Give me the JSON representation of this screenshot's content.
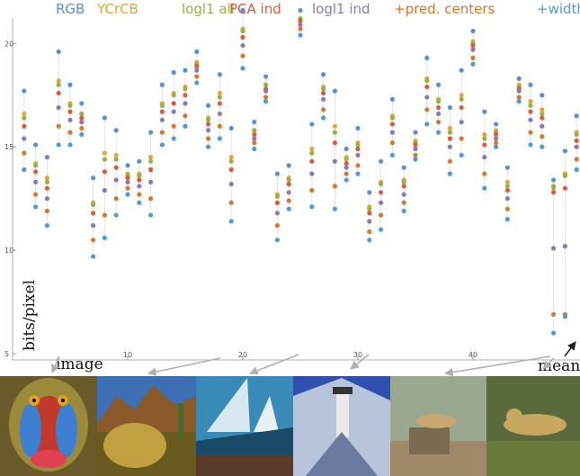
{
  "chart_data": {
    "type": "scatter",
    "x": [
      1,
      2,
      3,
      4,
      5,
      6,
      7,
      8,
      9,
      10,
      11,
      12,
      13,
      14,
      15,
      16,
      17,
      18,
      19,
      20,
      21,
      22,
      23,
      24,
      25,
      26,
      27,
      28,
      29,
      30,
      31,
      32,
      33,
      34,
      35,
      36,
      37,
      38,
      39,
      40,
      41,
      42,
      43,
      44,
      45,
      46,
      47,
      48,
      49
    ],
    "xlim": [
      0,
      49.3
    ],
    "xticks": [
      10,
      20,
      30,
      40
    ],
    "ylim": [
      4.7,
      22.1
    ],
    "yticks": [
      5,
      10,
      15,
      20
    ],
    "x_label": "image",
    "y_label": "bits/pixel",
    "annotation": "mean",
    "series": [
      {
        "name": "RGB",
        "color": "#5b8fd6",
        "values": [
          17.7,
          15.1,
          14.5,
          19.6,
          18.0,
          17.1,
          13.5,
          16.4,
          15.8,
          14.1,
          14.3,
          15.7,
          18.0,
          18.6,
          18.7,
          19.6,
          17.0,
          18.5,
          15.9,
          21.6,
          16.2,
          18.4,
          13.7,
          14.1,
          21.6,
          16.1,
          18.5,
          17.7,
          14.9,
          15.9,
          12.8,
          14.3,
          17.3,
          14.0,
          15.7,
          19.3,
          18.0,
          16.9,
          18.7,
          20.6,
          16.7,
          16.1,
          14.0,
          18.3,
          18.0,
          17.5,
          13.4,
          14.8,
          16.5
        ]
      },
      {
        "name": "YCrCB",
        "color": "#e8a33a",
        "values": [
          16.6,
          14.2,
          13.5,
          18.2,
          17.1,
          16.6,
          12.3,
          14.7,
          14.6,
          13.7,
          13.7,
          14.5,
          17.1,
          17.6,
          17.9,
          19.1,
          16.4,
          17.6,
          14.5,
          20.7,
          15.8,
          18.0,
          12.7,
          13.5,
          21.2,
          14.9,
          17.9,
          16.0,
          14.5,
          15.2,
          12.1,
          13.3,
          16.5,
          13.4,
          15.3,
          18.3,
          17.3,
          15.9,
          17.5,
          20.1,
          15.6,
          15.8,
          13.3,
          18.0,
          17.2,
          16.8,
          13.0,
          13.7,
          15.7
        ]
      },
      {
        "name": "logl1 all",
        "color": "#8fb548",
        "values": [
          16.4,
          14.1,
          13.3,
          18.0,
          17.0,
          16.6,
          12.2,
          14.4,
          14.4,
          13.6,
          13.6,
          14.3,
          17.0,
          17.5,
          17.8,
          19.0,
          16.3,
          17.4,
          14.3,
          20.6,
          15.8,
          18.0,
          12.6,
          13.4,
          21.2,
          14.7,
          17.8,
          15.7,
          14.4,
          15.1,
          12.0,
          13.2,
          16.4,
          13.3,
          15.2,
          18.2,
          17.2,
          15.7,
          17.3,
          20.0,
          15.4,
          15.7,
          13.1,
          17.9,
          17.0,
          16.6,
          13.1,
          13.6,
          15.6
        ]
      },
      {
        "name": "PCA ind",
        "color": "#e05a3a",
        "values": [
          16.0,
          13.8,
          13.0,
          17.6,
          16.7,
          16.4,
          11.8,
          13.8,
          14.0,
          13.5,
          13.4,
          13.9,
          16.7,
          17.1,
          17.5,
          18.9,
          16.1,
          17.1,
          13.9,
          20.3,
          15.6,
          17.8,
          12.3,
          13.2,
          21.1,
          14.3,
          17.6,
          15.2,
          14.2,
          14.9,
          11.8,
          12.8,
          16.1,
          13.1,
          15.1,
          17.9,
          16.9,
          15.4,
          16.9,
          19.9,
          15.1,
          15.6,
          12.9,
          17.8,
          16.7,
          16.4,
          12.8,
          13.0,
          15.3
        ]
      },
      {
        "name": "logl1 ind",
        "color": "#8a78b8",
        "values": [
          15.4,
          13.3,
          12.5,
          16.9,
          16.3,
          16.2,
          11.2,
          12.9,
          13.4,
          13.3,
          13.1,
          13.3,
          16.3,
          16.7,
          17.1,
          18.7,
          15.8,
          16.6,
          13.2,
          19.9,
          15.4,
          17.7,
          11.8,
          12.8,
          20.9,
          13.7,
          17.3,
          14.3,
          14.0,
          14.6,
          11.4,
          12.3,
          15.7,
          12.7,
          14.9,
          17.4,
          16.6,
          15.0,
          16.2,
          19.7,
          14.5,
          15.4,
          12.5,
          17.7,
          16.3,
          16.0,
          10.1,
          10.2,
          15.0
        ]
      },
      {
        "name": "+pred. centers",
        "color": "#d8782e",
        "values": [
          14.7,
          12.7,
          11.9,
          16.0,
          15.7,
          15.9,
          10.5,
          11.7,
          12.5,
          13.0,
          12.7,
          12.5,
          15.7,
          16.0,
          16.5,
          18.4,
          15.4,
          16.0,
          12.3,
          19.4,
          15.2,
          17.4,
          11.2,
          12.4,
          20.7,
          12.9,
          16.8,
          13.1,
          13.7,
          14.1,
          10.9,
          11.7,
          15.2,
          12.3,
          14.6,
          16.8,
          16.2,
          14.3,
          15.4,
          19.3,
          13.7,
          15.2,
          12.0,
          17.4,
          15.7,
          15.5,
          6.9,
          6.9,
          14.4
        ]
      },
      {
        "name": "+widths",
        "color": "#4f9bd8",
        "values": [
          13.9,
          12.1,
          11.2,
          15.1,
          15.1,
          15.6,
          9.7,
          10.6,
          11.7,
          12.7,
          12.3,
          11.7,
          15.1,
          15.4,
          16.0,
          18.1,
          15.0,
          15.4,
          11.4,
          18.8,
          14.9,
          17.2,
          10.5,
          12.0,
          20.4,
          12.1,
          16.4,
          12.0,
          13.4,
          13.7,
          10.5,
          11.0,
          14.6,
          11.9,
          14.4,
          16.1,
          15.7,
          13.7,
          14.6,
          19.0,
          13.0,
          15.0,
          11.5,
          17.2,
          15.1,
          15.0,
          6.0,
          6.8,
          13.9
        ]
      }
    ]
  }
}
